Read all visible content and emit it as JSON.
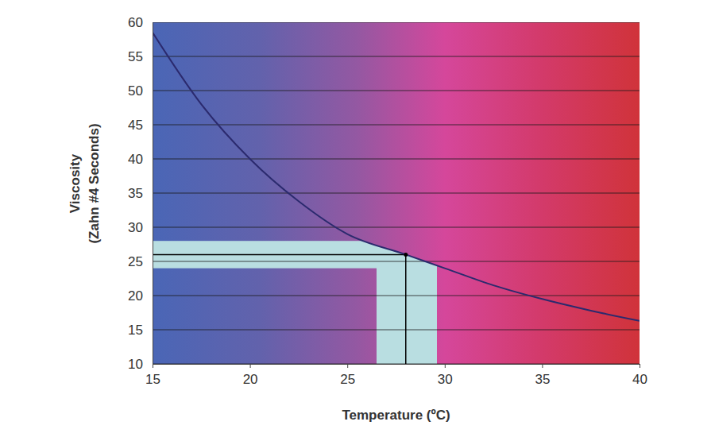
{
  "chart_data": {
    "type": "line",
    "xlabel": "Temperature (ºC)",
    "ylabel": [
      "Viscosity",
      "(Zahn #4 Seconds)"
    ],
    "x": [
      15,
      17.5,
      20,
      22.5,
      25,
      28,
      30,
      32.5,
      35,
      37.5,
      40
    ],
    "values": [
      58.5,
      48,
      40,
      33.8,
      29,
      26,
      24,
      21.5,
      19.5,
      17.8,
      16.3
    ],
    "color": "#2b2a6e",
    "reference": {
      "x": 28,
      "y": 26
    },
    "bands": {
      "x": [
        26.5,
        29.6
      ],
      "y": [
        24,
        28
      ]
    },
    "xlim": [
      15,
      40
    ],
    "xticks": [
      15,
      20,
      25,
      30,
      35,
      40
    ],
    "ylim": [
      10,
      60
    ],
    "yticks": [
      10,
      15,
      20,
      25,
      30,
      35,
      40,
      45,
      50,
      55,
      60
    ],
    "grid": true
  }
}
